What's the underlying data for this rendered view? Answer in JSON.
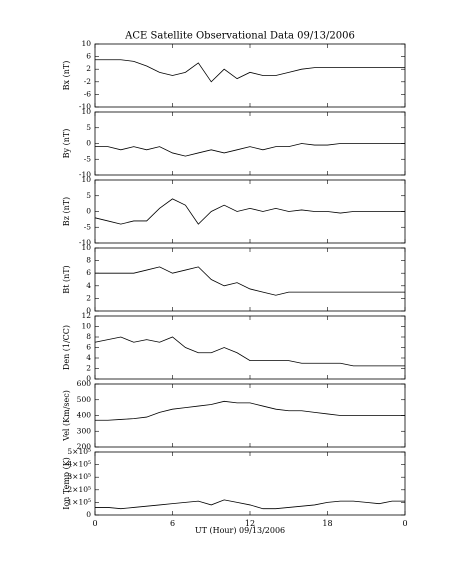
{
  "title": "ACE Satellite Observational Data   09/13/2006",
  "x_label": "UT (Hour)  09/13/2006",
  "xlim": [
    0,
    24
  ],
  "xticks": [
    0,
    6,
    12,
    18,
    {
      "value": 24,
      "label": "0"
    }
  ],
  "chart_data": [
    {
      "type": "line",
      "y_label": "Bx (nT)",
      "color": "#000000",
      "ylim": [
        -10,
        10
      ],
      "yticks": [
        -10,
        -6,
        -2,
        2,
        6,
        10
      ],
      "x": [
        0,
        1,
        2,
        3,
        4,
        5,
        6,
        7,
        8,
        9,
        10,
        11,
        12,
        13,
        14,
        15,
        16,
        17,
        18,
        19,
        20,
        21,
        22,
        23,
        24
      ],
      "values": [
        5,
        5,
        5,
        4.5,
        3,
        1,
        0,
        1,
        4,
        -2,
        2,
        -1,
        1,
        0,
        0,
        1,
        2,
        2.5,
        2.5,
        2.5,
        2.5,
        2.5,
        2.5,
        2.5,
        2.5
      ]
    },
    {
      "type": "line",
      "y_label": "By (nT)",
      "color": "#000000",
      "ylim": [
        -10,
        10
      ],
      "yticks": [
        -10,
        -5,
        0,
        5,
        10
      ],
      "x": [
        0,
        1,
        2,
        3,
        4,
        5,
        6,
        7,
        8,
        9,
        10,
        11,
        12,
        13,
        14,
        15,
        16,
        17,
        18,
        19,
        20,
        21,
        22,
        23,
        24
      ],
      "values": [
        -1,
        -1,
        -2,
        -1,
        -2,
        -1,
        -3,
        -4,
        -3,
        -2,
        -3,
        -2,
        -1,
        -2,
        -1,
        -1,
        0,
        -0.5,
        -0.5,
        0,
        0,
        0,
        0,
        0,
        0
      ]
    },
    {
      "type": "line",
      "y_label": "Bz (nT)",
      "color": "#000000",
      "ylim": [
        -10,
        10
      ],
      "yticks": [
        -10,
        -5,
        0,
        5,
        10
      ],
      "x": [
        0,
        1,
        2,
        3,
        4,
        5,
        6,
        7,
        8,
        9,
        10,
        11,
        12,
        13,
        14,
        15,
        16,
        17,
        18,
        19,
        20,
        21,
        22,
        23,
        24
      ],
      "values": [
        -2,
        -3,
        -4,
        -3,
        -3,
        1,
        4,
        2,
        -4,
        0,
        2,
        0,
        1,
        0,
        1,
        0,
        0.5,
        0,
        0,
        -0.5,
        0,
        0,
        0,
        0,
        0
      ]
    },
    {
      "type": "line",
      "y_label": "Bt (nT)",
      "color": "#000000",
      "ylim": [
        0,
        10
      ],
      "yticks": [
        0,
        2,
        4,
        6,
        8,
        10
      ],
      "x": [
        0,
        1,
        2,
        3,
        4,
        5,
        6,
        7,
        8,
        9,
        10,
        11,
        12,
        13,
        14,
        15,
        16,
        17,
        18,
        19,
        20,
        21,
        22,
        23,
        24
      ],
      "values": [
        6,
        6,
        6,
        6,
        6.5,
        7,
        6,
        6.5,
        7,
        5,
        4,
        4.5,
        3.5,
        3,
        2.5,
        3,
        3,
        3,
        3,
        3,
        3,
        3,
        3,
        3,
        3
      ]
    },
    {
      "type": "line",
      "y_label": "Den (1/CC)",
      "color": "#000000",
      "ylim": [
        0,
        12
      ],
      "yticks": [
        0,
        2,
        4,
        6,
        8,
        10,
        12
      ],
      "x": [
        0,
        1,
        2,
        3,
        4,
        5,
        6,
        7,
        8,
        9,
        10,
        11,
        12,
        13,
        14,
        15,
        16,
        17,
        18,
        19,
        20,
        21,
        22,
        23,
        24
      ],
      "values": [
        7,
        7.5,
        8,
        7,
        7.5,
        7,
        8,
        6,
        5,
        5,
        6,
        5,
        3.5,
        3.5,
        3.5,
        3.5,
        3,
        3,
        3,
        3,
        2.5,
        2.5,
        2.5,
        2.5,
        2.5
      ]
    },
    {
      "type": "line",
      "y_label": "Vel (Km/sec)",
      "color": "#000000",
      "ylim": [
        200,
        600
      ],
      "yticks": [
        200,
        300,
        400,
        500,
        600
      ],
      "x": [
        0,
        1,
        2,
        3,
        4,
        5,
        6,
        7,
        8,
        9,
        10,
        11,
        12,
        13,
        14,
        15,
        16,
        17,
        18,
        19,
        20,
        21,
        22,
        23,
        24
      ],
      "values": [
        370,
        370,
        375,
        380,
        390,
        420,
        440,
        450,
        460,
        470,
        490,
        480,
        480,
        460,
        440,
        430,
        430,
        420,
        410,
        400,
        400,
        400,
        400,
        400,
        400
      ]
    },
    {
      "type": "line",
      "y_label": "Ion Temp (K)",
      "color": "#000000",
      "ylim": [
        0,
        500000
      ],
      "yticks": [
        0,
        {
          "value": 100000,
          "label": "1×10⁵"
        },
        {
          "value": 200000,
          "label": "2×10⁵"
        },
        {
          "value": 300000,
          "label": "3×10⁵"
        },
        {
          "value": 400000,
          "label": "4×10⁵"
        },
        {
          "value": 500000,
          "label": "5×10⁵"
        }
      ],
      "x": [
        0,
        1,
        2,
        3,
        4,
        5,
        6,
        7,
        8,
        9,
        10,
        11,
        12,
        13,
        14,
        15,
        16,
        17,
        18,
        19,
        20,
        21,
        22,
        23,
        24
      ],
      "values": [
        60000,
        60000,
        50000,
        60000,
        70000,
        80000,
        90000,
        100000,
        110000,
        80000,
        120000,
        100000,
        80000,
        50000,
        50000,
        60000,
        70000,
        80000,
        100000,
        110000,
        110000,
        100000,
        90000,
        110000,
        110000
      ]
    }
  ]
}
